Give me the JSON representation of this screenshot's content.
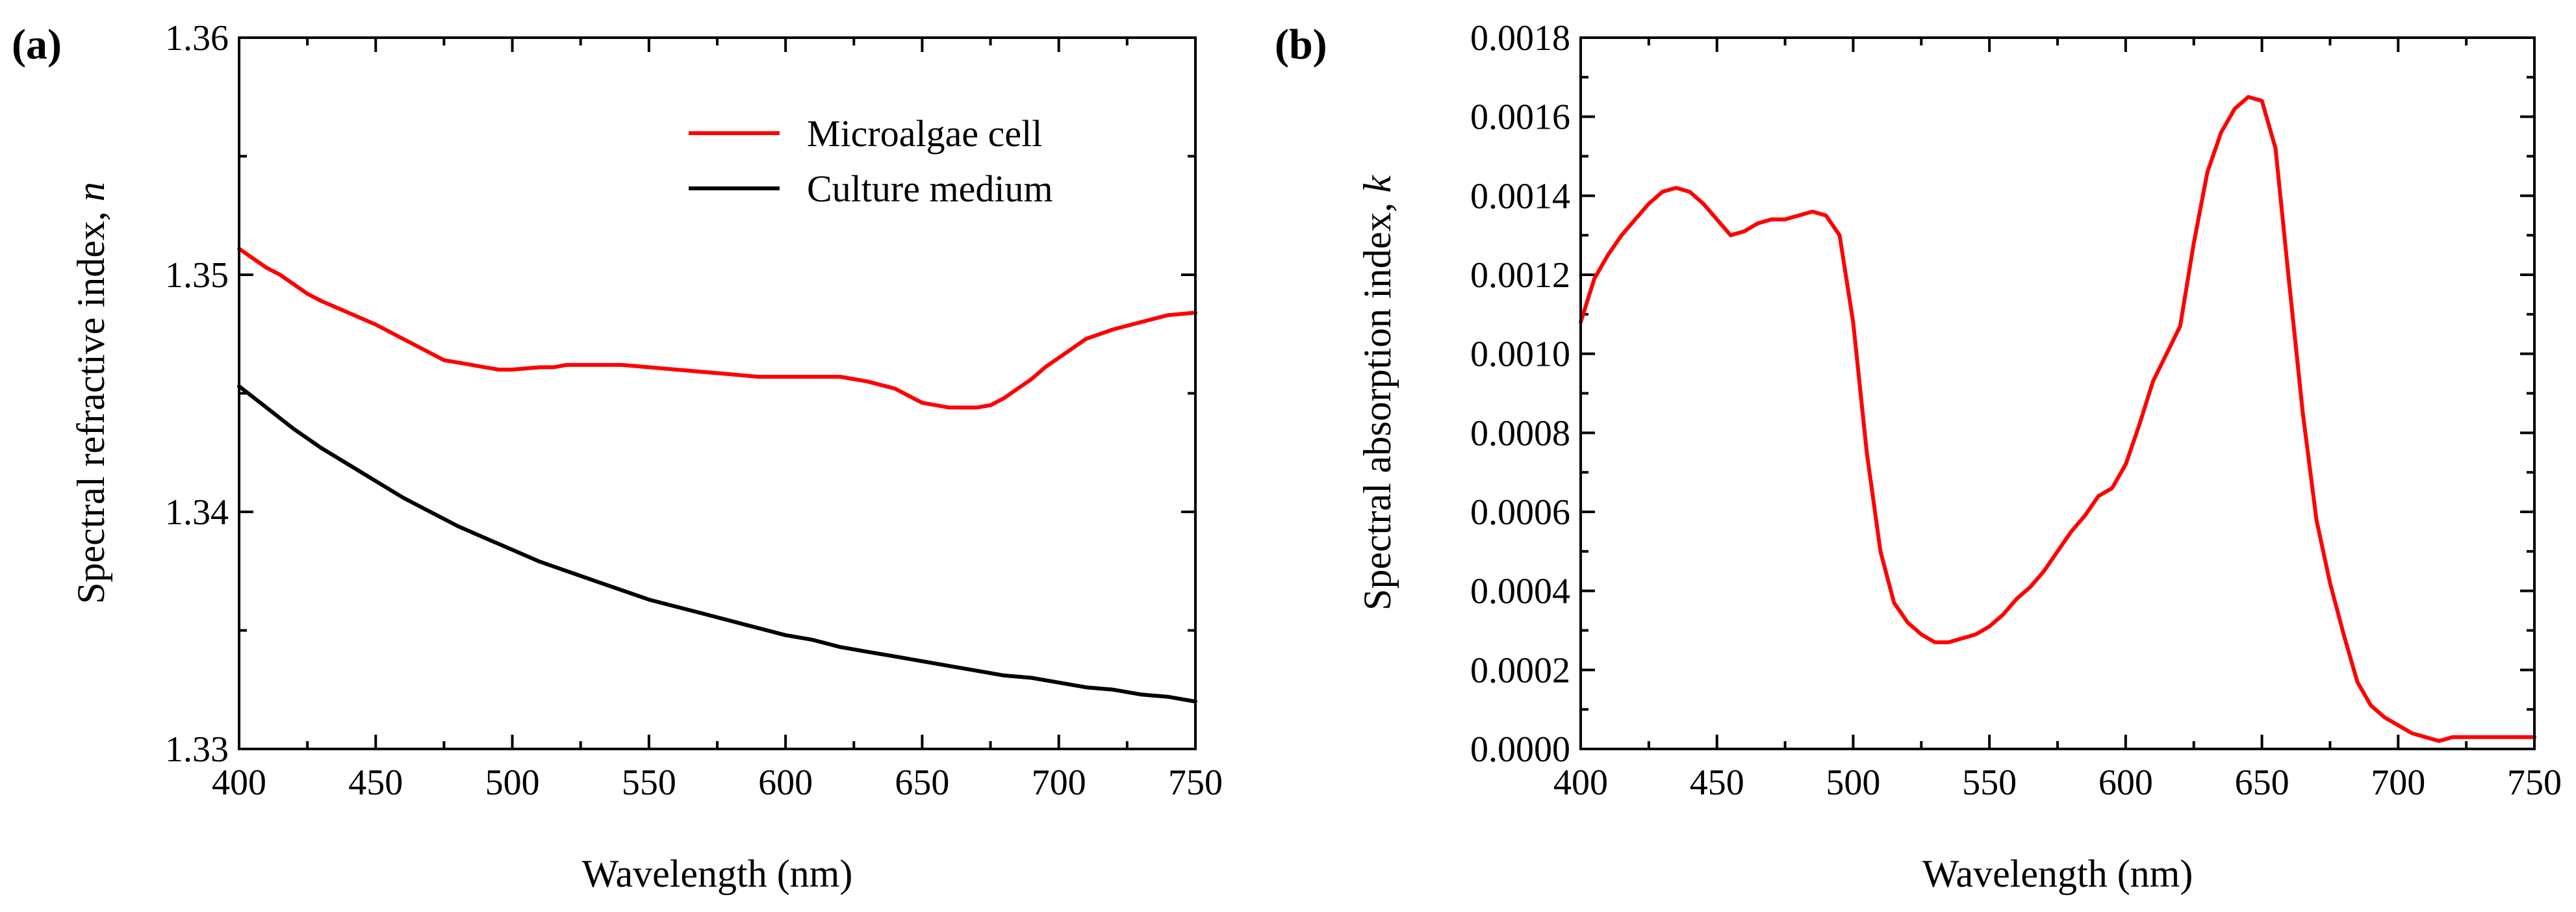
{
  "chart_data": [
    {
      "type": "line",
      "panel_label": "(a)",
      "title": "",
      "xlabel": "Wavelength (nm)",
      "ylabel": "Spectral refractive index, n",
      "ylabel_main": "Spectral refractive index, ",
      "ylabel_symbol": "n",
      "xlim": [
        400,
        750
      ],
      "ylim": [
        1.33,
        1.36
      ],
      "xticks": [
        400,
        450,
        500,
        550,
        600,
        650,
        700,
        750
      ],
      "xtick_labels": [
        "400",
        "450",
        "500",
        "550",
        "600",
        "650",
        "700",
        "750"
      ],
      "yticks": [
        1.33,
        1.34,
        1.35,
        1.36
      ],
      "ytick_labels": [
        "1.33",
        "1.34",
        "1.35",
        "1.36"
      ],
      "grid": false,
      "legend_position": "top-right",
      "series": [
        {
          "name": "Microalgae cell",
          "color": "#ff0000",
          "x": [
            400,
            405,
            410,
            415,
            420,
            425,
            430,
            440,
            450,
            460,
            470,
            475,
            480,
            485,
            490,
            495,
            500,
            510,
            515,
            520,
            530,
            540,
            550,
            560,
            570,
            580,
            590,
            600,
            610,
            620,
            630,
            640,
            645,
            650,
            655,
            660,
            665,
            670,
            675,
            680,
            685,
            690,
            695,
            700,
            705,
            710,
            715,
            720,
            730,
            740,
            750
          ],
          "values": [
            1.3511,
            1.3507,
            1.3503,
            1.35,
            1.3496,
            1.3492,
            1.3489,
            1.3484,
            1.3479,
            1.3473,
            1.3467,
            1.3464,
            1.3463,
            1.3462,
            1.3461,
            1.346,
            1.346,
            1.3461,
            1.3461,
            1.3462,
            1.3462,
            1.3462,
            1.3461,
            1.346,
            1.3459,
            1.3458,
            1.3457,
            1.3457,
            1.3457,
            1.3457,
            1.3455,
            1.3452,
            1.3449,
            1.3446,
            1.3445,
            1.3444,
            1.3444,
            1.3444,
            1.3445,
            1.3448,
            1.3452,
            1.3456,
            1.3461,
            1.3465,
            1.3469,
            1.3473,
            1.3475,
            1.3477,
            1.348,
            1.3483,
            1.3484
          ]
        },
        {
          "name": "Culture medium",
          "color": "#000000",
          "x": [
            400,
            410,
            420,
            430,
            440,
            450,
            460,
            470,
            480,
            490,
            500,
            510,
            520,
            530,
            540,
            550,
            560,
            570,
            580,
            590,
            600,
            610,
            620,
            630,
            640,
            650,
            660,
            670,
            680,
            690,
            700,
            710,
            720,
            730,
            740,
            750
          ],
          "values": [
            1.3453,
            1.3444,
            1.3435,
            1.3427,
            1.342,
            1.3413,
            1.3406,
            1.34,
            1.3394,
            1.3389,
            1.3384,
            1.3379,
            1.3375,
            1.3371,
            1.3367,
            1.3363,
            1.336,
            1.3357,
            1.3354,
            1.3351,
            1.3348,
            1.3346,
            1.3343,
            1.3341,
            1.3339,
            1.3337,
            1.3335,
            1.3333,
            1.3331,
            1.333,
            1.3328,
            1.3326,
            1.3325,
            1.3323,
            1.3322,
            1.332
          ]
        }
      ]
    },
    {
      "type": "line",
      "panel_label": "(b)",
      "title": "",
      "xlabel": "Wavelength (nm)",
      "ylabel": "Spectral absorption index, k",
      "ylabel_main": "Spectral absorption index, ",
      "ylabel_symbol": "k",
      "xlim": [
        400,
        750
      ],
      "ylim": [
        0,
        0.0018
      ],
      "xticks": [
        400,
        450,
        500,
        550,
        600,
        650,
        700,
        750
      ],
      "xtick_labels": [
        "400",
        "450",
        "500",
        "550",
        "600",
        "650",
        "700",
        "750"
      ],
      "yticks": [
        0,
        0.0002,
        0.0004,
        0.0006,
        0.0008,
        0.001,
        0.0012,
        0.0014,
        0.0016,
        0.0018
      ],
      "ytick_labels": [
        "0.0000",
        "0.0002",
        "0.0004",
        "0.0006",
        "0.0008",
        "0.0010",
        "0.0012",
        "0.0014",
        "0.0016",
        "0.0018"
      ],
      "grid": false,
      "legend_position": "none",
      "series": [
        {
          "name": "Microalgae cell",
          "color": "#ff0000",
          "x": [
            400,
            405,
            410,
            415,
            420,
            425,
            430,
            435,
            440,
            445,
            450,
            455,
            460,
            465,
            470,
            475,
            480,
            485,
            490,
            495,
            500,
            505,
            510,
            515,
            520,
            525,
            530,
            535,
            540,
            545,
            550,
            555,
            560,
            565,
            570,
            575,
            580,
            585,
            590,
            595,
            600,
            605,
            610,
            615,
            620,
            625,
            630,
            635,
            640,
            645,
            650,
            655,
            660,
            665,
            670,
            675,
            680,
            685,
            690,
            695,
            700,
            705,
            710,
            715,
            720,
            725,
            730,
            735,
            740,
            745,
            750
          ],
          "values": [
            0.00108,
            0.00119,
            0.00125,
            0.0013,
            0.00134,
            0.00138,
            0.00141,
            0.00142,
            0.00141,
            0.00138,
            0.00134,
            0.0013,
            0.00131,
            0.00133,
            0.00134,
            0.00134,
            0.00135,
            0.00136,
            0.00135,
            0.0013,
            0.00108,
            0.00075,
            0.0005,
            0.00037,
            0.00032,
            0.00029,
            0.00027,
            0.00027,
            0.00028,
            0.00029,
            0.00031,
            0.00034,
            0.00038,
            0.00041,
            0.00045,
            0.0005,
            0.00055,
            0.00059,
            0.00064,
            0.00066,
            0.00072,
            0.00082,
            0.00093,
            0.001,
            0.00107,
            0.00128,
            0.00146,
            0.00156,
            0.00162,
            0.00165,
            0.00164,
            0.00152,
            0.00118,
            0.00085,
            0.00058,
            0.00042,
            0.00029,
            0.00017,
            0.00011,
            8e-05,
            6e-05,
            4e-05,
            3e-05,
            2e-05,
            3e-05,
            3e-05,
            3e-05,
            3e-05,
            3e-05,
            3e-05,
            3e-05
          ]
        }
      ]
    }
  ]
}
